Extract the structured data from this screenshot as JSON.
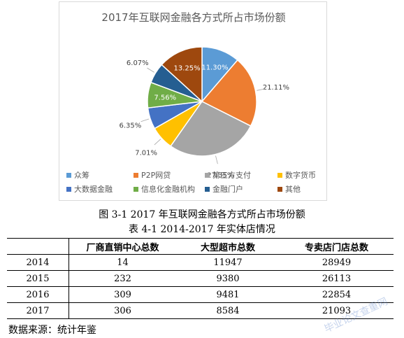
{
  "chart_data": {
    "type": "pie",
    "title": "2017年互联网金融各方式所占市场份额",
    "slices": [
      {
        "name": "众筹",
        "value": 11.3,
        "label": "11.30%",
        "color": "#5b9bd5"
      },
      {
        "name": "P2P网贷",
        "value": 21.11,
        "label": "21.11%",
        "color": "#ed7d31"
      },
      {
        "name": "第三方支付",
        "value": 27.35,
        "label": "27.35%",
        "color": "#a5a5a5"
      },
      {
        "name": "数字货币",
        "value": 7.01,
        "label": "7.01%",
        "color": "#ffc000"
      },
      {
        "name": "大数据金融",
        "value": 6.35,
        "label": "6.35%",
        "color": "#4472c4"
      },
      {
        "name": "信息化金融机构",
        "value": 7.56,
        "label": "7.56%",
        "color": "#70ad47"
      },
      {
        "name": "金融门户",
        "value": 6.07,
        "label": "6.07%",
        "color": "#255e91"
      },
      {
        "name": "其他",
        "value": 13.25,
        "label": "13.25%",
        "color": "#9e480e"
      }
    ],
    "legend_position": "bottom"
  },
  "figure_caption": "图 3-1 2017 年互联网金融各方式所占市场份额",
  "table_caption": "表 4-1 2014-2017 年实体店情况",
  "table": {
    "headers": [
      "",
      "厂商直销中心总数",
      "大型超市总数",
      "专卖店门店总数"
    ],
    "rows": [
      [
        "2014",
        "14",
        "11947",
        "28949"
      ],
      [
        "2015",
        "232",
        "9380",
        "26113"
      ],
      [
        "2016",
        "309",
        "9481",
        "22854"
      ],
      [
        "2017",
        "306",
        "8584",
        "21093"
      ]
    ]
  },
  "source_note": "数据来源：统计年鉴",
  "watermark": "毕业论文查重网"
}
